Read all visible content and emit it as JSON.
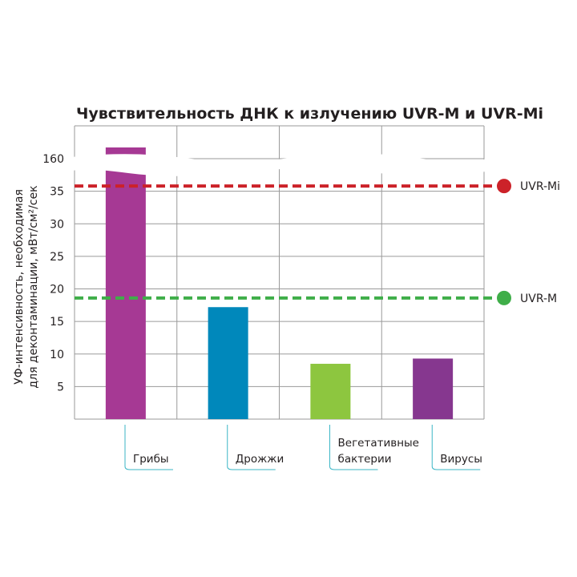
{
  "chart_data": {
    "type": "bar",
    "title": "Чувствительность ДНК к излучению UVR-M и UVR-Mi",
    "ylabel_line1": "УФ-интенсивность, необходимая",
    "ylabel_line2": "для деконтаминации, мВт/см²/сек",
    "yticks": [
      "5",
      "10",
      "15",
      "20",
      "25",
      "30",
      "35",
      "160"
    ],
    "ylim": [
      0,
      40
    ],
    "axis_break": true,
    "categories": [
      {
        "lines": [
          "Грибы"
        ]
      },
      {
        "lines": [
          "Дрожжи"
        ]
      },
      {
        "lines": [
          "Вегетативные",
          "бактерии"
        ]
      },
      {
        "lines": [
          "Вирусы"
        ]
      }
    ],
    "values": [
      162,
      17.2,
      8.5,
      9.3
    ],
    "bar_colors": [
      "#a63994",
      "#0088bb",
      "#8dc63f",
      "#86378f"
    ],
    "grid": true,
    "reference_lines": [
      {
        "label": "UVR-Mi",
        "value": 35.8,
        "color": "#cc2229"
      },
      {
        "label": "UVR-M",
        "value": 18.6,
        "color": "#3fae49"
      }
    ],
    "leader_color": "#3bb6c6"
  }
}
